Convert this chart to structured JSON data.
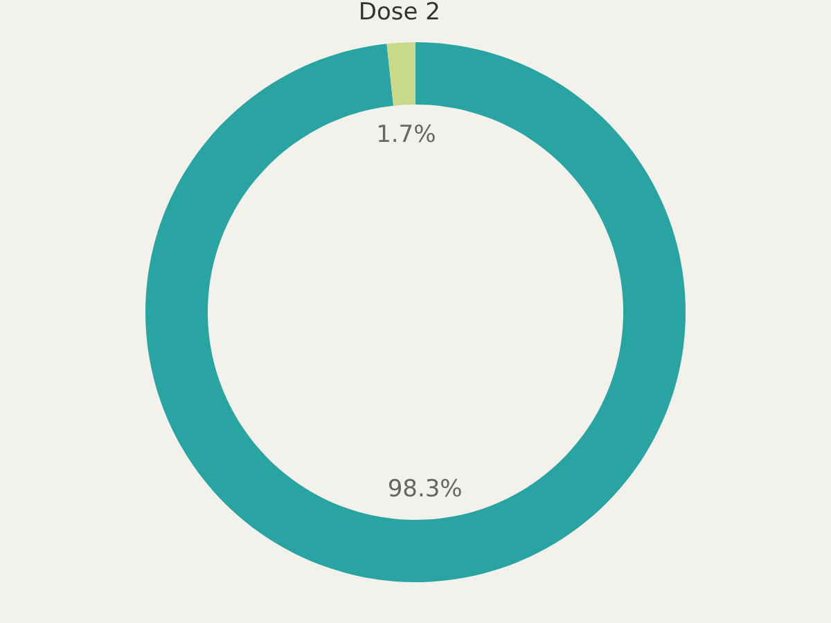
{
  "chart_data": {
    "type": "donut",
    "categories": [
      null,
      "Dose 2"
    ],
    "values": [
      98.3,
      1.7
    ],
    "colors": [
      "#2aa3a3",
      "#c9d98a"
    ],
    "value_labels": [
      "98.3%",
      "1.7%"
    ],
    "legend": false
  }
}
